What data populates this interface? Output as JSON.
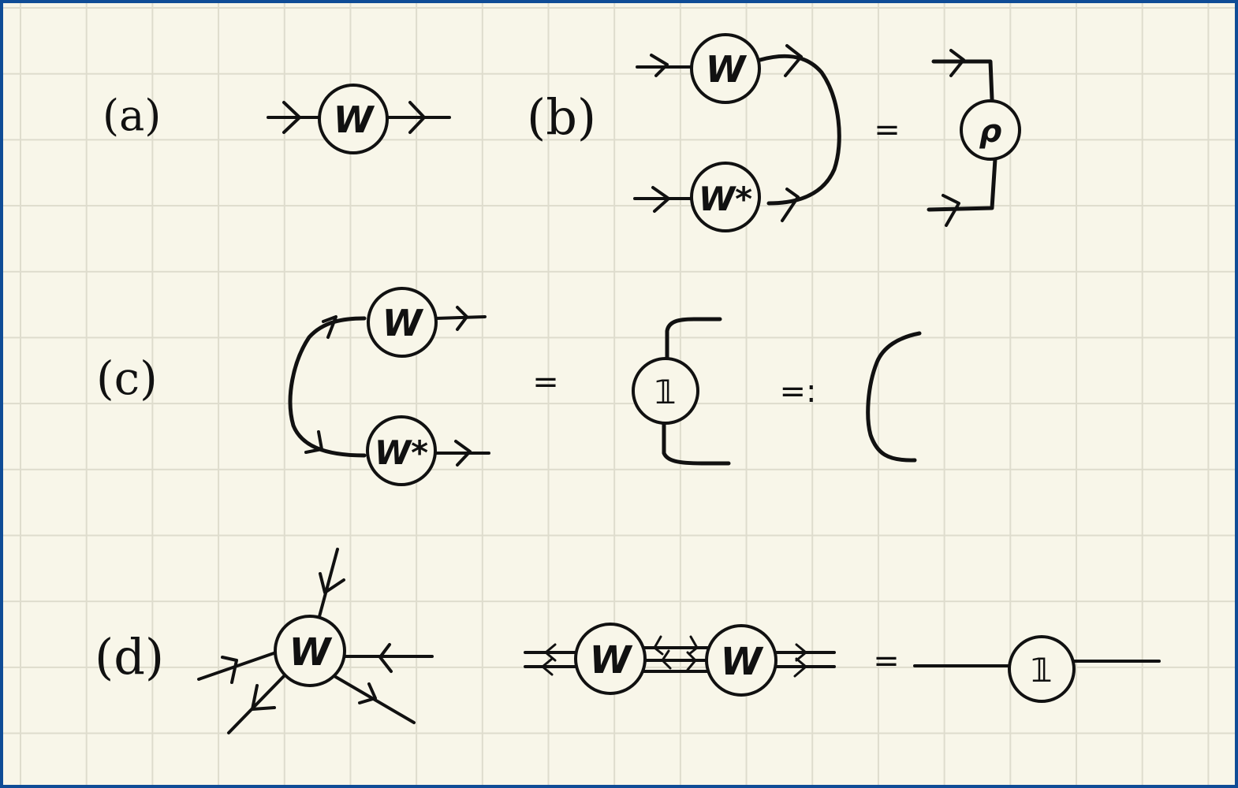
{
  "panels": {
    "a": "(a)",
    "b": "(b)",
    "c": "(c)",
    "d": "(d)"
  },
  "nodes": {
    "w": "W",
    "w_conj": "W*",
    "rho": "ρ",
    "identity": "𝟙"
  },
  "symbols": {
    "equals": "=",
    "defined_as": "=:"
  }
}
